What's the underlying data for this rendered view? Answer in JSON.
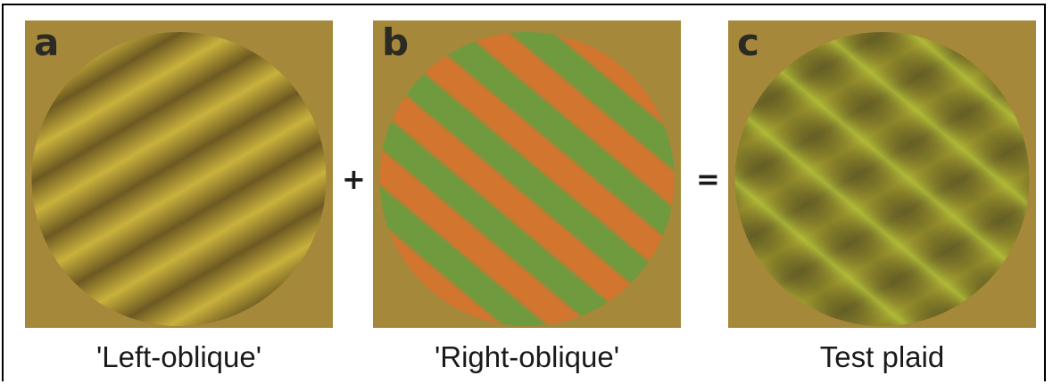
{
  "panels": [
    {
      "letter": "a",
      "caption": "'Left-oblique'"
    },
    {
      "letter": "b",
      "caption": "'Right-oblique'"
    },
    {
      "letter": "c",
      "caption": "Test plaid"
    }
  ],
  "operators": {
    "plus": "+",
    "equals": "="
  },
  "colors": {
    "background": "#a5883a",
    "grating_a_light": "#c9b13c",
    "grating_a_dark": "#6e5a22",
    "grating_b_orange": "#d2752e",
    "grating_b_green": "#6f9a3e",
    "plaid_orange": "#f0a025",
    "plaid_green": "#a6bf3a",
    "plaid_dark_red": "#9a4a1c",
    "plaid_dark_green": "#3e6e2c"
  }
}
